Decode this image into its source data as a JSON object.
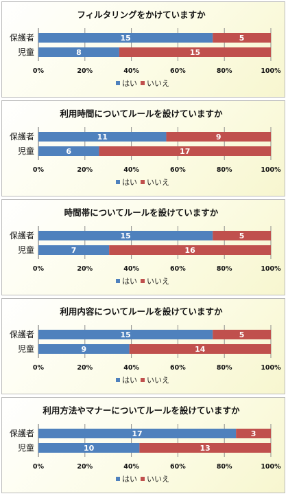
{
  "chart_data": [
    {
      "type": "bar",
      "stacked": "percent",
      "orientation": "horizontal",
      "title": "フィルタリングをかけていますか",
      "categories": [
        "保護者",
        "児童"
      ],
      "series": [
        {
          "name": "はい",
          "values": [
            15,
            8
          ],
          "color": "#4f81bd"
        },
        {
          "name": "いいえ",
          "values": [
            5,
            15
          ],
          "color": "#c0504d"
        }
      ],
      "xticks": [
        "0%",
        "20%",
        "40%",
        "60%",
        "80%",
        "100%"
      ],
      "xlim": [
        0,
        100
      ],
      "grid": true,
      "legend": "bottom"
    },
    {
      "type": "bar",
      "stacked": "percent",
      "orientation": "horizontal",
      "title": "利用時間についてルールを設けていますか",
      "categories": [
        "保護者",
        "児童"
      ],
      "series": [
        {
          "name": "はい",
          "values": [
            11,
            6
          ],
          "color": "#4f81bd"
        },
        {
          "name": "いいえ",
          "values": [
            9,
            17
          ],
          "color": "#c0504d"
        }
      ],
      "xticks": [
        "0%",
        "20%",
        "40%",
        "60%",
        "80%",
        "100%"
      ],
      "xlim": [
        0,
        100
      ],
      "grid": true,
      "legend": "bottom"
    },
    {
      "type": "bar",
      "stacked": "percent",
      "orientation": "horizontal",
      "title": "時間帯についてルールを設けていますか",
      "categories": [
        "保護者",
        "児童"
      ],
      "series": [
        {
          "name": "はい",
          "values": [
            15,
            7
          ],
          "color": "#4f81bd"
        },
        {
          "name": "いいえ",
          "values": [
            5,
            16
          ],
          "color": "#c0504d"
        }
      ],
      "xticks": [
        "0%",
        "20%",
        "40%",
        "60%",
        "80%",
        "100%"
      ],
      "xlim": [
        0,
        100
      ],
      "grid": true,
      "legend": "bottom"
    },
    {
      "type": "bar",
      "stacked": "percent",
      "orientation": "horizontal",
      "title": "利用内容についてルールを設けていますか",
      "categories": [
        "保護者",
        "児童"
      ],
      "series": [
        {
          "name": "はい",
          "values": [
            15,
            9
          ],
          "color": "#4f81bd"
        },
        {
          "name": "いいえ",
          "values": [
            5,
            14
          ],
          "color": "#c0504d"
        }
      ],
      "xticks": [
        "0%",
        "20%",
        "40%",
        "60%",
        "80%",
        "100%"
      ],
      "xlim": [
        0,
        100
      ],
      "grid": true,
      "legend": "bottom"
    },
    {
      "type": "bar",
      "stacked": "percent",
      "orientation": "horizontal",
      "title": "利用方法やマナーについてルールを設けていますか",
      "categories": [
        "保護者",
        "児童"
      ],
      "series": [
        {
          "name": "はい",
          "values": [
            17,
            10
          ],
          "color": "#4f81bd"
        },
        {
          "name": "いいえ",
          "values": [
            3,
            13
          ],
          "color": "#c0504d"
        }
      ],
      "xticks": [
        "0%",
        "20%",
        "40%",
        "60%",
        "80%",
        "100%"
      ],
      "xlim": [
        0,
        100
      ],
      "grid": true,
      "legend": "bottom"
    }
  ]
}
